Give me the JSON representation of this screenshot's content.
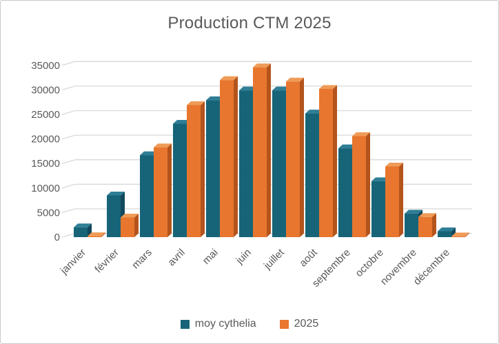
{
  "chart_data": {
    "type": "bar",
    "style": "3d-clustered-column",
    "title": "Production CTM 2025",
    "categories": [
      "janvier",
      "février",
      "mars",
      "avril",
      "mai",
      "juin",
      "juillet",
      "août",
      "septembre",
      "octobre",
      "novembre",
      "décembre"
    ],
    "series": [
      {
        "name": "moy cythelia",
        "values": [
          2000,
          8500,
          16700,
          23100,
          27900,
          29900,
          29900,
          25200,
          18100,
          11400,
          4800,
          1200
        ],
        "color": "#176478",
        "color_dark": "#11485c",
        "color_light": "#2f7e96"
      },
      {
        "name": "2025",
        "values": [
          200,
          4000,
          18300,
          26900,
          32000,
          34600,
          31700,
          30200,
          20600,
          14400,
          4100,
          150
        ],
        "color": "#e8762e",
        "color_dark": "#b3541c",
        "color_light": "#ef9b57"
      }
    ],
    "xlabel": "",
    "ylabel": "",
    "ylim": [
      0,
      35000
    ],
    "yticks": [
      0,
      5000,
      10000,
      15000,
      20000,
      25000,
      30000,
      35000
    ],
    "grid": true,
    "legend_position": "bottom",
    "text_color": "#595959",
    "gridline_color": "#d9d9d9"
  }
}
